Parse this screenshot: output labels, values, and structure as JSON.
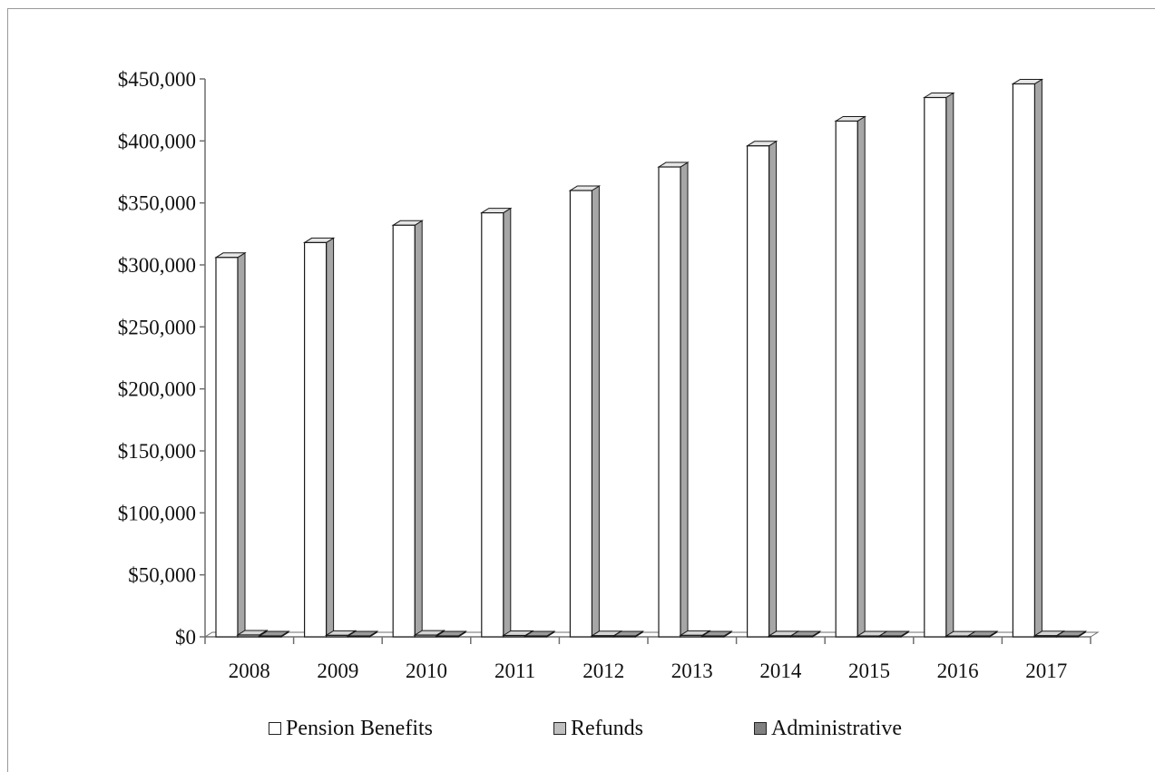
{
  "chart_data": {
    "type": "bar",
    "title": "",
    "xlabel": "",
    "ylabel": "",
    "categories": [
      "2008",
      "2009",
      "2010",
      "2011",
      "2012",
      "2013",
      "2014",
      "2015",
      "2016",
      "2017"
    ],
    "series": [
      {
        "name": "Pension Benefits",
        "color": "#ffffff",
        "values": [
          306000,
          318000,
          332000,
          342000,
          360000,
          379000,
          396000,
          416000,
          435000,
          446000
        ]
      },
      {
        "name": "Refunds",
        "color": "#bfbfbf",
        "values": [
          1500,
          1200,
          1400,
          1100,
          900,
          1200,
          800,
          700,
          600,
          900
        ]
      },
      {
        "name": "Administrative",
        "color": "#808080",
        "values": [
          700,
          700,
          700,
          700,
          700,
          700,
          700,
          700,
          700,
          700
        ]
      }
    ],
    "ylim": [
      0,
      450000
    ],
    "yticks": [
      "$0",
      "$50,000",
      "$100,000",
      "$150,000",
      "$200,000",
      "$250,000",
      "$300,000",
      "$350,000",
      "$400,000",
      "$450,000"
    ],
    "grid": false,
    "legend_position": "bottom",
    "style": "3d-clustered-column"
  }
}
